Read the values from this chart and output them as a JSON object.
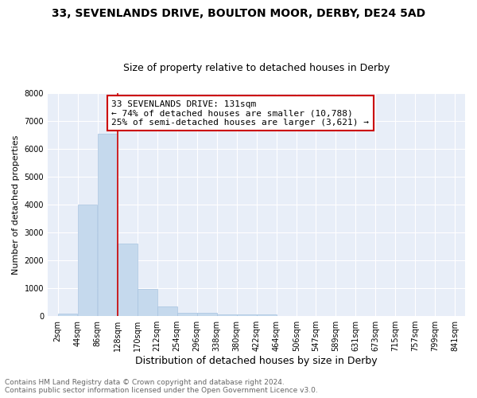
{
  "title": "33, SEVENLANDS DRIVE, BOULTON MOOR, DERBY, DE24 5AD",
  "subtitle": "Size of property relative to detached houses in Derby",
  "xlabel": "Distribution of detached houses by size in Derby",
  "ylabel": "Number of detached properties",
  "bin_edges": [
    2,
    44,
    86,
    128,
    170,
    212,
    254,
    296,
    338,
    380,
    422,
    464,
    506,
    547,
    589,
    631,
    673,
    715,
    757,
    799,
    841
  ],
  "bin_labels": [
    "2sqm",
    "44sqm",
    "86sqm",
    "128sqm",
    "170sqm",
    "212sqm",
    "254sqm",
    "296sqm",
    "338sqm",
    "380sqm",
    "422sqm",
    "464sqm",
    "506sqm",
    "547sqm",
    "589sqm",
    "631sqm",
    "673sqm",
    "715sqm",
    "757sqm",
    "799sqm",
    "841sqm"
  ],
  "bar_heights": [
    80,
    4000,
    6550,
    2600,
    970,
    340,
    130,
    110,
    60,
    70,
    65,
    0,
    0,
    0,
    0,
    0,
    0,
    0,
    0,
    0
  ],
  "bar_color": "#c5d9ed",
  "bar_edgecolor": "#a8c4e0",
  "property_line_x": 128,
  "property_line_color": "#cc0000",
  "ylim": [
    0,
    8000
  ],
  "yticks": [
    0,
    1000,
    2000,
    3000,
    4000,
    5000,
    6000,
    7000,
    8000
  ],
  "plot_bg_color": "#e8eef8",
  "grid_color": "#ffffff",
  "annotation_line1": "33 SEVENLANDS DRIVE: 131sqm",
  "annotation_line2": "← 74% of detached houses are smaller (10,788)",
  "annotation_line3": "25% of semi-detached houses are larger (3,621) →",
  "annotation_box_color": "#cc0000",
  "footnote": "Contains HM Land Registry data © Crown copyright and database right 2024.\nContains public sector information licensed under the Open Government Licence v3.0.",
  "title_fontsize": 10,
  "subtitle_fontsize": 9,
  "xlabel_fontsize": 9,
  "ylabel_fontsize": 8,
  "annotation_fontsize": 8,
  "footnote_fontsize": 6.5,
  "tick_fontsize": 7
}
